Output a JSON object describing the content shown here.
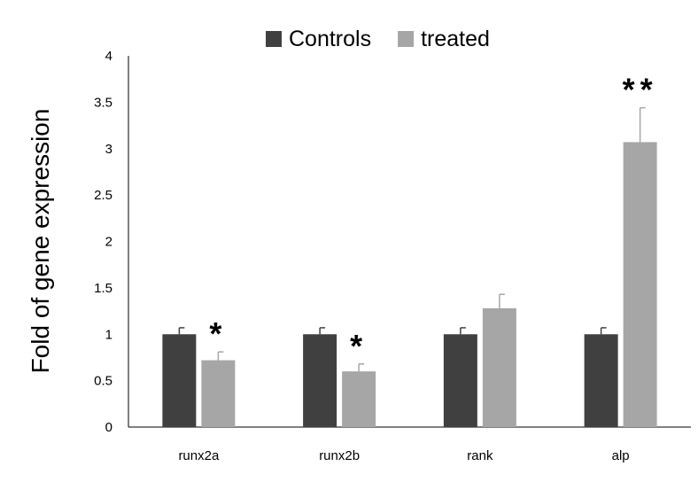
{
  "chart_data": {
    "type": "bar",
    "title": "",
    "xlabel": "",
    "ylabel": "Fold of gene expression",
    "categories": [
      "runx2a",
      "runx2b",
      "rank",
      "alp"
    ],
    "series": [
      {
        "name": "Controls",
        "color": "#404040",
        "values": [
          1.0,
          1.0,
          1.0,
          1.0
        ],
        "errors": [
          0.07,
          0.07,
          0.07,
          0.07
        ]
      },
      {
        "name": "treated",
        "color": "#a6a6a6",
        "values": [
          0.72,
          0.6,
          1.28,
          3.07
        ],
        "errors": [
          0.09,
          0.08,
          0.15,
          0.37
        ]
      }
    ],
    "annotations": [
      "*",
      "*",
      "",
      "**"
    ],
    "ylim": [
      0,
      4
    ],
    "yticks": [
      0,
      0.5,
      1,
      1.5,
      2,
      2.5,
      3,
      3.5,
      4
    ],
    "ytick_labels": [
      "0",
      "0.5",
      "1",
      "1.5",
      "2",
      "2.5",
      "3",
      "3.5",
      "4"
    ],
    "grid": false,
    "legend_position": "top"
  }
}
